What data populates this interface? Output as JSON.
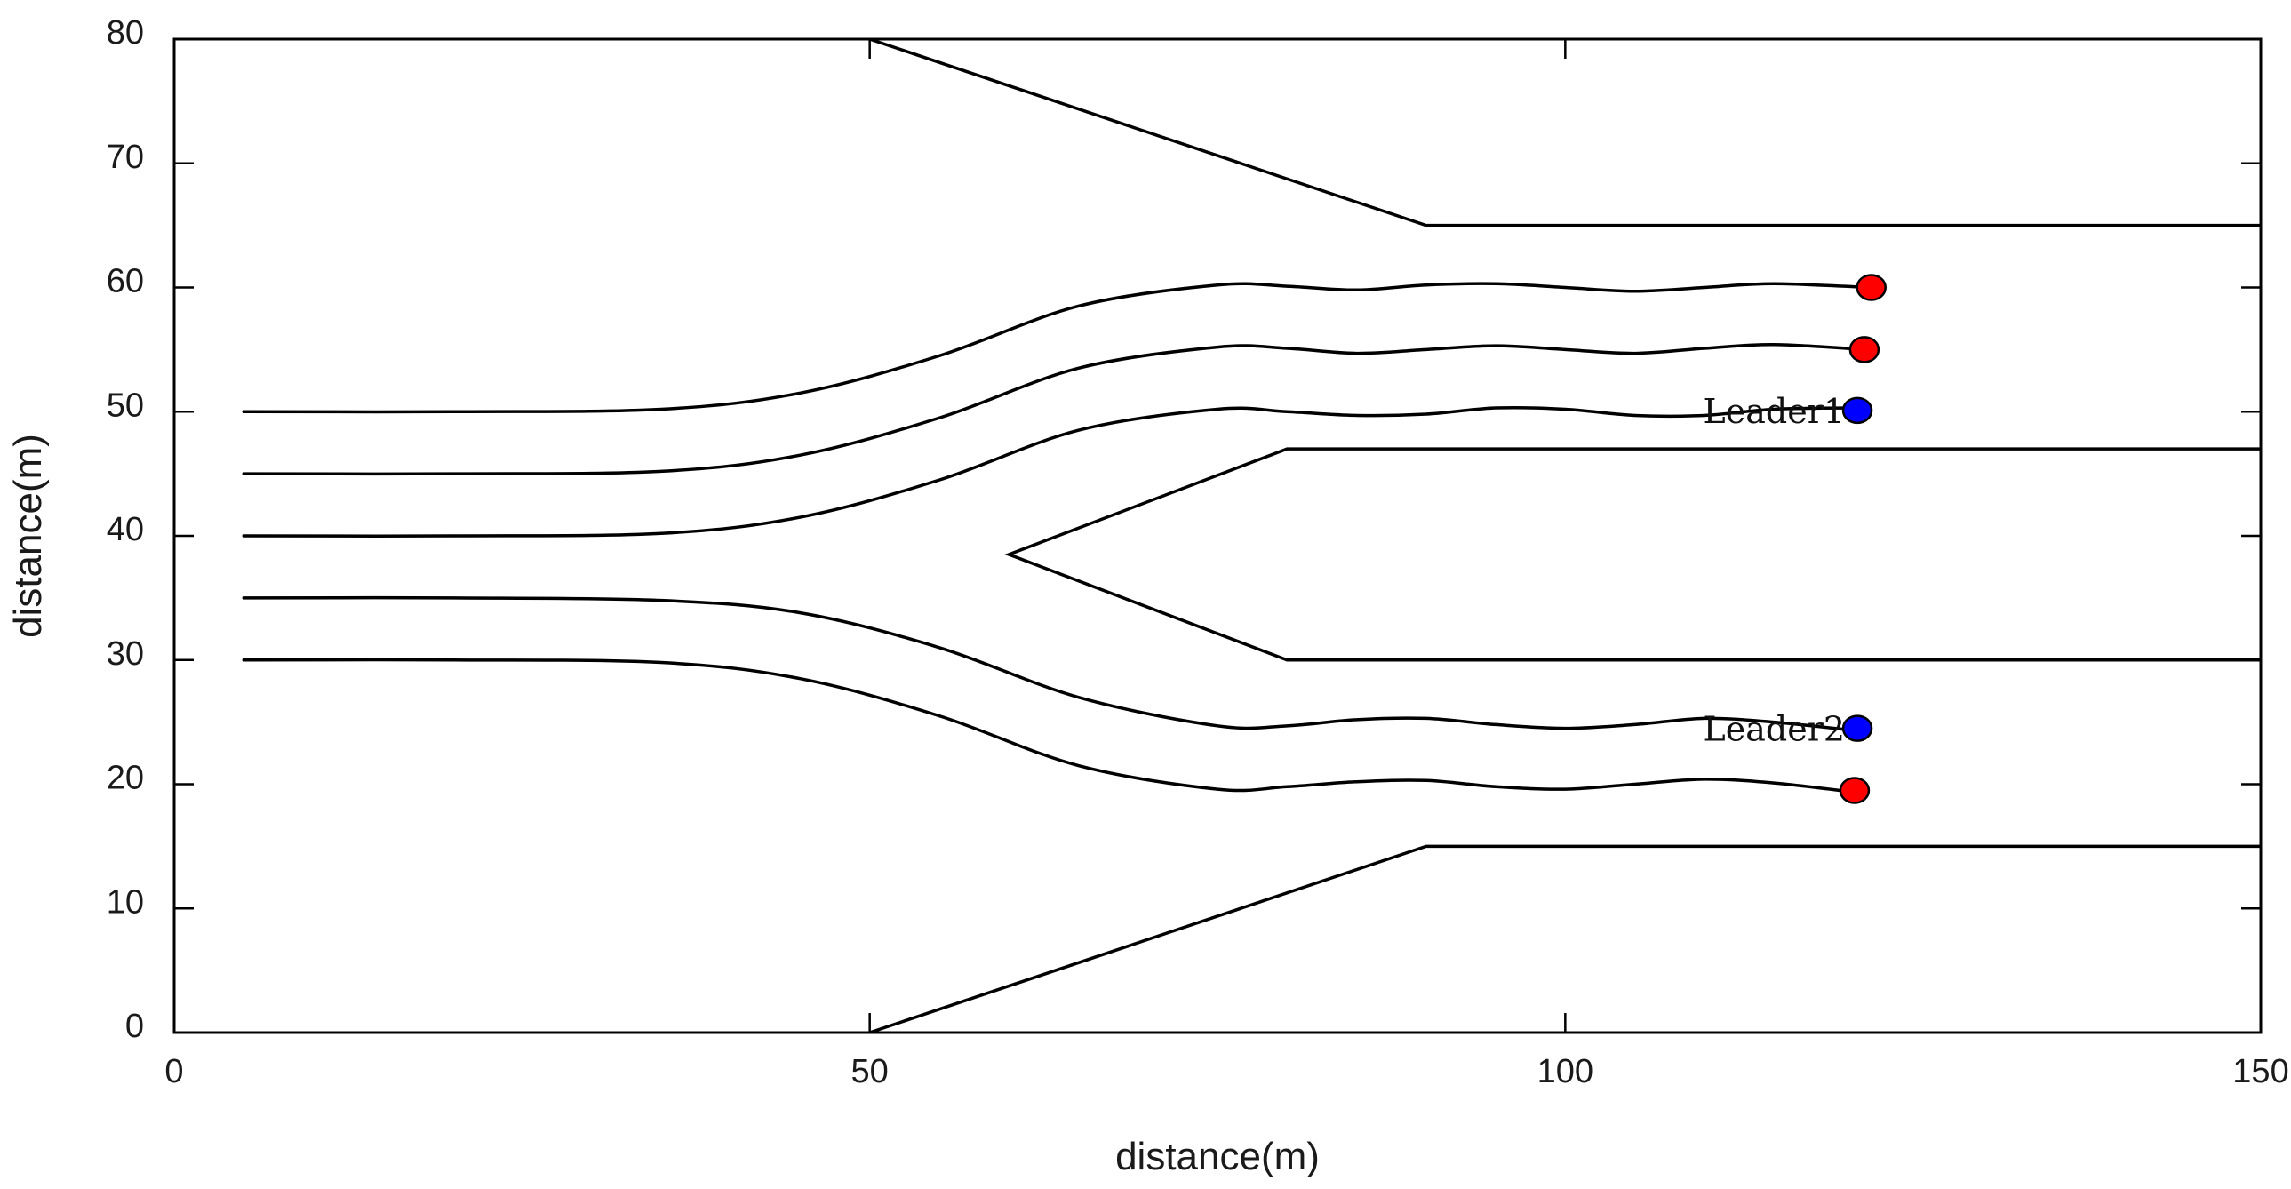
{
  "chart_data": {
    "type": "line",
    "xlabel": "distance(m)",
    "ylabel": "distance(m)",
    "xlim": [
      0,
      150
    ],
    "ylim": [
      0,
      80
    ],
    "x_ticks": [
      0,
      50,
      100,
      150
    ],
    "y_ticks": [
      0,
      10,
      20,
      30,
      40,
      50,
      60,
      70,
      80
    ],
    "grid": false,
    "colors": {
      "line": "#000000",
      "leader": "#0000ff",
      "follower": "#ff0000",
      "marker_edge": "#000000"
    },
    "road_boundaries": [
      {
        "id": "upper-outer",
        "x": [
          50,
          90,
          150
        ],
        "y": [
          80,
          65,
          65
        ]
      },
      {
        "id": "lower-outer",
        "x": [
          50,
          90,
          150
        ],
        "y": [
          0,
          15,
          15
        ]
      },
      {
        "id": "median-wedge",
        "x": [
          150,
          80,
          60,
          80,
          150
        ],
        "y": [
          47,
          47,
          38.5,
          30,
          30
        ]
      }
    ],
    "trajectories": [
      {
        "id": "traj-1",
        "x": [
          5,
          20,
          35,
          45,
          55,
          65,
          75,
          80,
          85,
          90,
          95,
          100,
          105,
          110,
          115,
          122
        ],
        "y": [
          50,
          50,
          50.2,
          51.5,
          54.5,
          58.5,
          60.2,
          60.1,
          59.8,
          60.2,
          60.3,
          60.0,
          59.7,
          60.0,
          60.3,
          60
        ]
      },
      {
        "id": "traj-2",
        "x": [
          5,
          20,
          35,
          45,
          55,
          65,
          75,
          80,
          85,
          90,
          95,
          100,
          105,
          110,
          115,
          121.5
        ],
        "y": [
          45,
          45,
          45.2,
          46.5,
          49.5,
          53.5,
          55.2,
          55.1,
          54.7,
          55.0,
          55.3,
          55.0,
          54.7,
          55.1,
          55.4,
          55
        ]
      },
      {
        "id": "traj-3",
        "x": [
          5,
          20,
          35,
          45,
          55,
          65,
          75,
          80,
          85,
          90,
          95,
          100,
          105,
          110,
          115,
          121
        ],
        "y": [
          40,
          40,
          40.2,
          41.5,
          44.5,
          48.5,
          50.2,
          50.0,
          49.7,
          49.8,
          50.3,
          50.2,
          49.7,
          49.7,
          50.2,
          50.3
        ]
      },
      {
        "id": "traj-4",
        "x": [
          5,
          20,
          35,
          45,
          55,
          65,
          75,
          80,
          85,
          90,
          95,
          100,
          105,
          110,
          115,
          121
        ],
        "y": [
          35,
          35,
          34.8,
          33.8,
          31,
          27,
          24.7,
          24.7,
          25.2,
          25.3,
          24.8,
          24.5,
          24.8,
          25.3,
          25.0,
          24.3
        ]
      },
      {
        "id": "traj-5",
        "x": [
          5,
          20,
          35,
          45,
          55,
          65,
          75,
          80,
          85,
          90,
          95,
          100,
          105,
          110,
          115,
          120.5
        ],
        "y": [
          30,
          30,
          29.8,
          28.5,
          25.5,
          21.5,
          19.6,
          19.8,
          20.2,
          20.3,
          19.8,
          19.6,
          20.0,
          20.4,
          20.1,
          19.4
        ]
      }
    ],
    "vehicles": [
      {
        "id": "follower-1",
        "x": 122,
        "y": 60,
        "role": "follower",
        "label": ""
      },
      {
        "id": "follower-2",
        "x": 121.5,
        "y": 55,
        "role": "follower",
        "label": ""
      },
      {
        "id": "leader-1",
        "x": 121,
        "y": 50.1,
        "role": "leader",
        "label": "Leader1"
      },
      {
        "id": "leader-2",
        "x": 121,
        "y": 24.5,
        "role": "leader",
        "label": "Leader2"
      },
      {
        "id": "follower-3",
        "x": 120.8,
        "y": 19.5,
        "role": "follower",
        "label": ""
      }
    ]
  }
}
